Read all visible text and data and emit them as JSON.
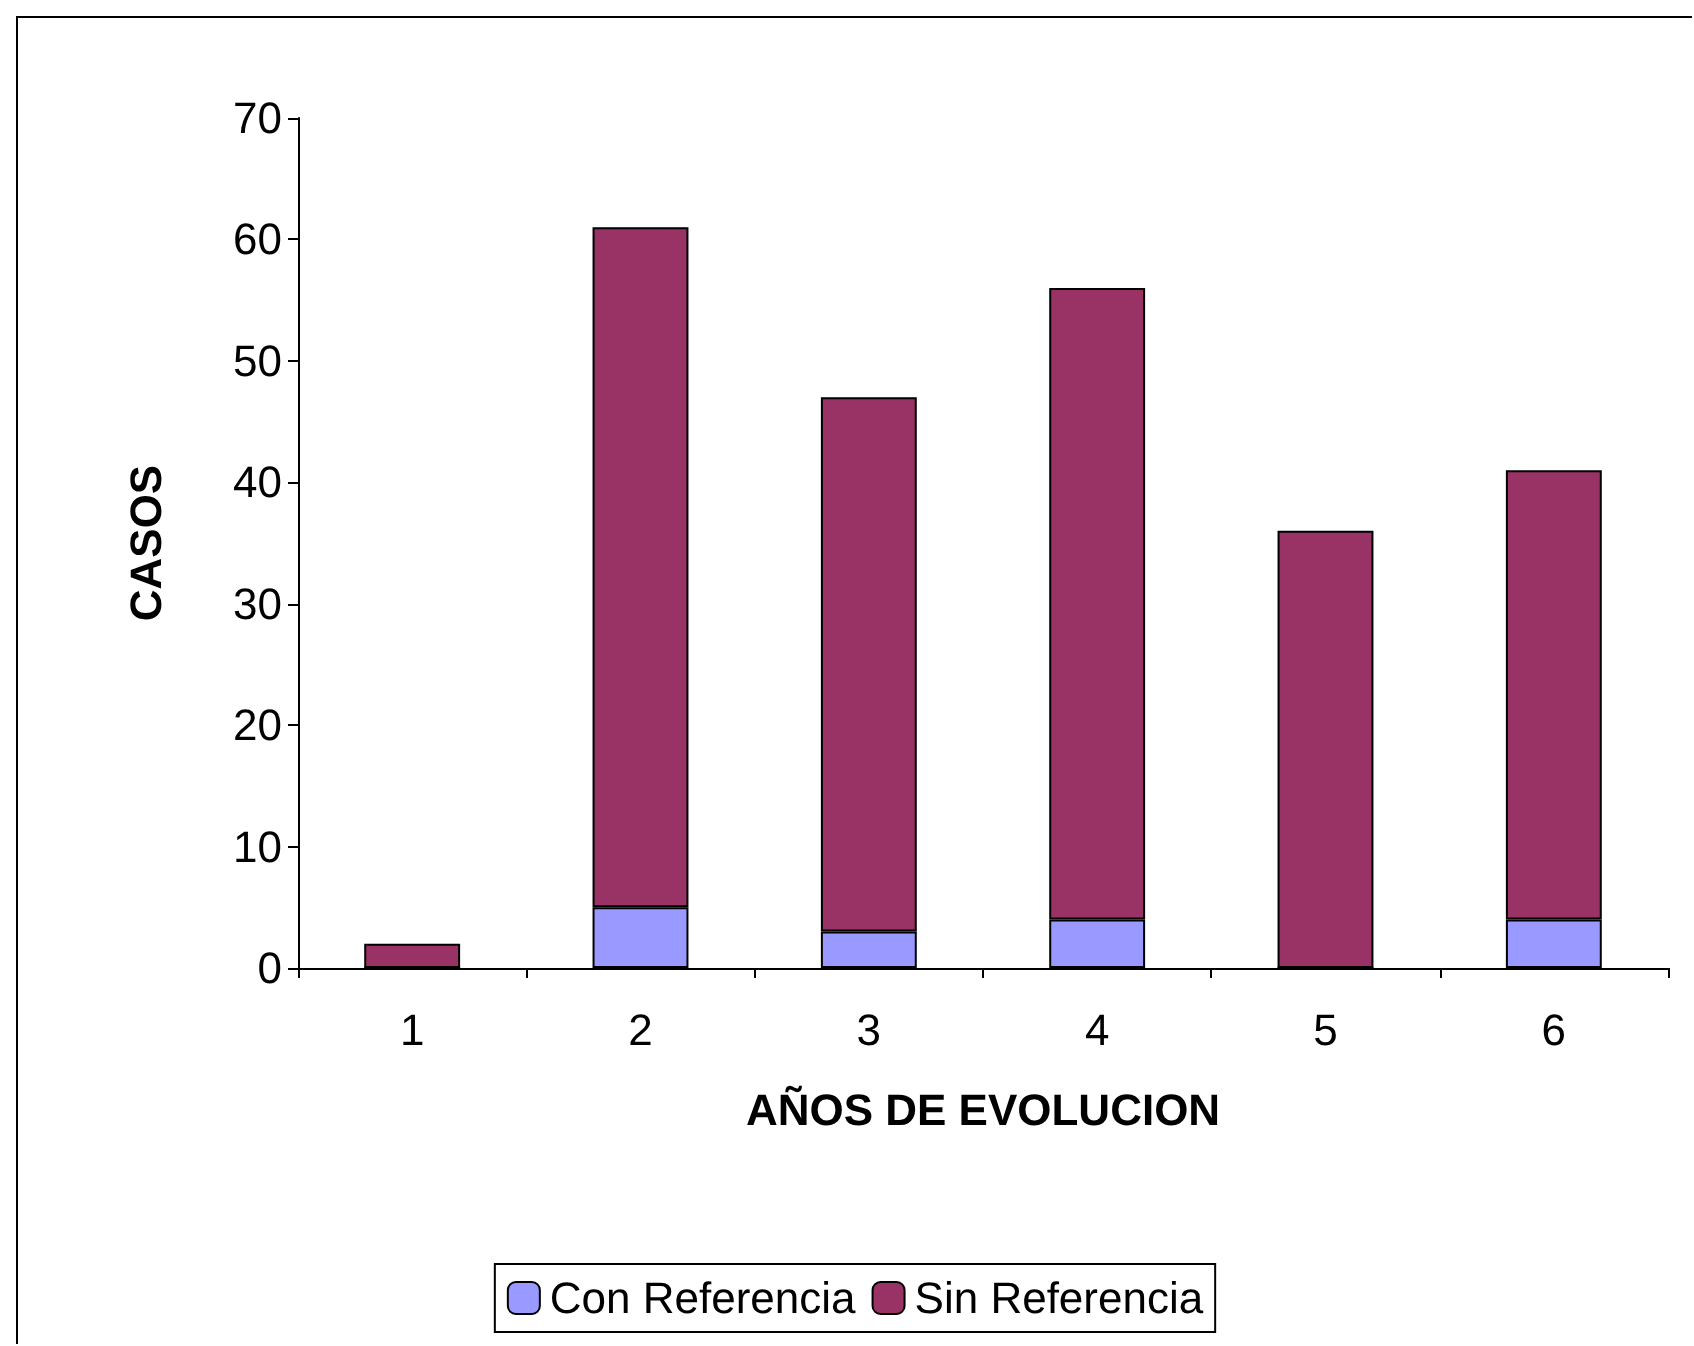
{
  "chart_data": {
    "type": "bar",
    "stacked": true,
    "xlabel": "AÑOS DE EVOLUCION",
    "ylabel": "CASOS",
    "categories": [
      "1",
      "2",
      "3",
      "4",
      "5",
      "6"
    ],
    "series": [
      {
        "name": "Con Referencia",
        "color": "#9999ff",
        "values": [
          0,
          5,
          3,
          4,
          0,
          4
        ]
      },
      {
        "name": "Sin Referencia",
        "color": "#993366",
        "values": [
          2,
          56,
          44,
          52,
          36,
          37
        ]
      }
    ],
    "ylim": [
      0,
      70
    ],
    "yticks": [
      0,
      10,
      20,
      30,
      40,
      50,
      60,
      70
    ],
    "grid": false,
    "legend": "bottom"
  }
}
